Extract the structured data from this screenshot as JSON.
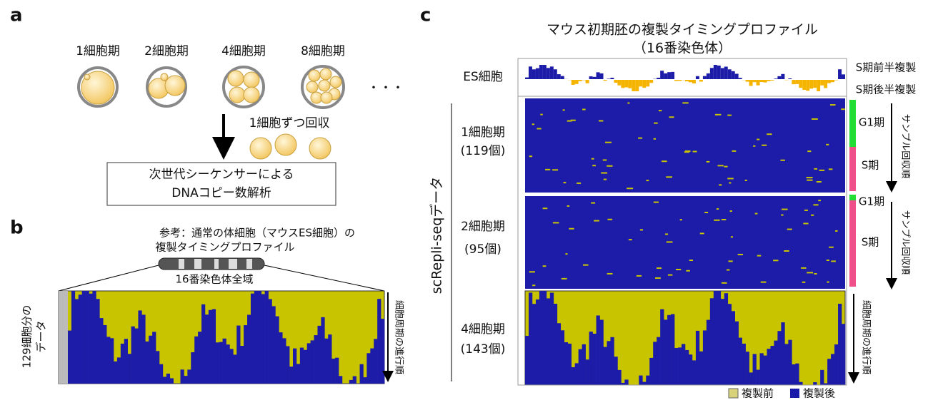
{
  "panel_a": {
    "letter": "a",
    "stages": [
      "1細胞期",
      "2細胞期",
      "4細胞期",
      "8細胞期"
    ],
    "ellipsis": "・・・",
    "collect": "1細胞ずつ回収",
    "box": [
      "次世代シーケンサーによる",
      "DNAコピー数解析"
    ]
  },
  "panel_b": {
    "letter": "b",
    "caption": [
      "参考：通常の体細胞（マウスES細胞）の",
      "複製タイミングプロファイル"
    ],
    "chromosome": "16番染色体全域",
    "rows_label": [
      "129細胞分の",
      "データ"
    ],
    "order": "細胞周期の進行順"
  },
  "panel_c": {
    "letter": "c",
    "title": [
      "マウス初期胚の複製タイミングプロファイル",
      "（16番染色体）"
    ],
    "es": "ES細胞",
    "early": "S期前半複製",
    "late": "S期後半複製",
    "side": "scRepli-seqデータ",
    "groups": [
      {
        "stage": "1細胞期",
        "count": "(119個)"
      },
      {
        "stage": "2細胞期",
        "count": "(95個)"
      },
      {
        "stage": "4細胞期",
        "count": "(143個)"
      }
    ],
    "phases": [
      "G1期",
      "S期",
      "G1期",
      "S期"
    ],
    "sample_order": [
      "サンプル回収順",
      "サンプル回収順"
    ],
    "order": "細胞周期の進行順",
    "legend": [
      "複製前",
      "複製後"
    ]
  }
}
